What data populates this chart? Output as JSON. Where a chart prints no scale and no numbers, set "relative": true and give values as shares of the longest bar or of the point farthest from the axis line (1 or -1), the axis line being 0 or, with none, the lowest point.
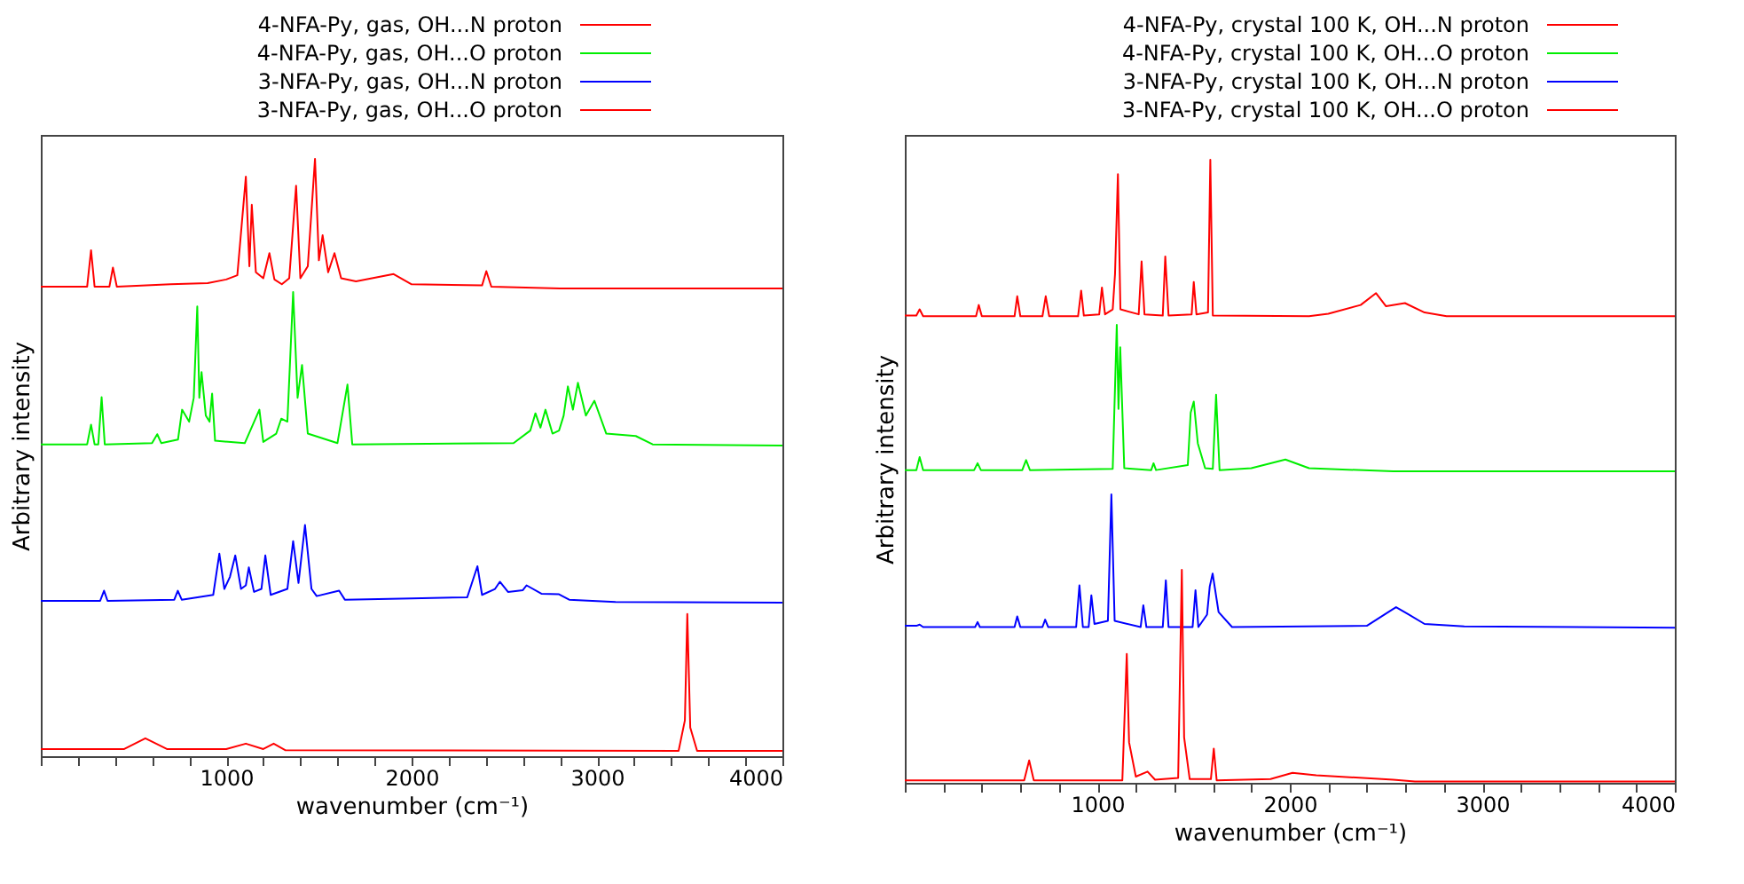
{
  "chart_data": [
    {
      "type": "line",
      "relative": true,
      "xlabel": "wavenumber (cm⁻¹)",
      "ylabel": "Arbitrary intensity",
      "legend": "top",
      "grid": false,
      "line_style": "solid",
      "xlim": [
        0,
        4000
      ],
      "xticks": [
        {
          "value": 0,
          "label": null
        },
        {
          "value": 200,
          "label": null
        },
        {
          "value": 400,
          "label": null
        },
        {
          "value": 600,
          "label": null
        },
        {
          "value": 800,
          "label": null
        },
        1000,
        {
          "value": 1200,
          "label": null
        },
        {
          "value": 1400,
          "label": null
        },
        {
          "value": 1600,
          "label": null
        },
        {
          "value": 1800,
          "label": null
        },
        2000,
        {
          "value": 2200,
          "label": null
        },
        {
          "value": 2400,
          "label": null
        },
        {
          "value": 2600,
          "label": null
        },
        {
          "value": 2800,
          "label": null
        },
        3000,
        {
          "value": 3200,
          "label": null
        },
        {
          "value": 3400,
          "label": null
        },
        {
          "value": 3600,
          "label": null
        },
        {
          "value": 3800,
          "label": null
        },
        4000
      ],
      "series": [
        {
          "name": "4-NFA-Py, gas, OH...N proton",
          "color": "#ff0000",
          "x": [
            0,
            250,
            271,
            290,
            370,
            389,
            410,
            700,
            900,
            1000,
            1060,
            1106,
            1125,
            1138,
            1160,
            1200,
            1233,
            1260,
            1300,
            1340,
            1377,
            1400,
            1440,
            1479,
            1500,
            1520,
            1550,
            1584,
            1620,
            1700,
            1903,
            2000,
            2380,
            2403,
            2430,
            2800,
            4000
          ],
          "values": [
            0.786,
            0.786,
            0.847,
            0.786,
            0.786,
            0.818,
            0.786,
            0.79,
            0.792,
            0.798,
            0.805,
            0.97,
            0.82,
            0.923,
            0.81,
            0.8,
            0.842,
            0.798,
            0.79,
            0.8,
            0.955,
            0.8,
            0.82,
            1.0,
            0.83,
            0.872,
            0.81,
            0.842,
            0.8,
            0.795,
            0.807,
            0.79,
            0.788,
            0.812,
            0.786,
            0.783,
            0.783
          ]
        },
        {
          "name": "4-NFA-Py, gas, OH...O proton",
          "color": "#00ee00",
          "x": [
            0,
            250,
            271,
            290,
            310,
            328,
            345,
            600,
            628,
            650,
            740,
            762,
            800,
            825,
            844,
            855,
            867,
            890,
            910,
            924,
            940,
            1100,
            1179,
            1200,
            1270,
            1297,
            1330,
            1361,
            1385,
            1409,
            1440,
            1600,
            1654,
            1680,
            2550,
            2640,
            2668,
            2695,
            2722,
            2760,
            2795,
            2820,
            2843,
            2870,
            2897,
            2940,
            2986,
            3050,
            3209,
            3300,
            4000
          ],
          "values": [
            0.522,
            0.522,
            0.555,
            0.522,
            0.522,
            0.601,
            0.522,
            0.524,
            0.539,
            0.524,
            0.53,
            0.58,
            0.56,
            0.6,
            0.753,
            0.6,
            0.643,
            0.57,
            0.56,
            0.607,
            0.528,
            0.524,
            0.58,
            0.526,
            0.54,
            0.565,
            0.56,
            0.777,
            0.6,
            0.655,
            0.54,
            0.524,
            0.622,
            0.522,
            0.524,
            0.545,
            0.574,
            0.55,
            0.58,
            0.54,
            0.545,
            0.57,
            0.619,
            0.58,
            0.625,
            0.57,
            0.595,
            0.54,
            0.536,
            0.522,
            0.52
          ]
        },
        {
          "name": "3-NFA-Py, gas, OH...N proton",
          "color": "#0000ff",
          "x": [
            0,
            320,
            341,
            360,
            720,
            739,
            760,
            930,
            963,
            990,
            1020,
            1049,
            1080,
            1106,
            1122,
            1150,
            1190,
            1211,
            1240,
            1330,
            1361,
            1390,
            1425,
            1460,
            1488,
            1609,
            1640,
            2000,
            2300,
            2355,
            2380,
            2450,
            2476,
            2520,
            2600,
            2620,
            2700,
            2795,
            2850,
            3100,
            4000
          ],
          "values": [
            0.26,
            0.26,
            0.277,
            0.26,
            0.262,
            0.277,
            0.262,
            0.27,
            0.339,
            0.28,
            0.3,
            0.336,
            0.28,
            0.286,
            0.316,
            0.275,
            0.28,
            0.336,
            0.27,
            0.28,
            0.36,
            0.29,
            0.387,
            0.28,
            0.268,
            0.277,
            0.262,
            0.264,
            0.266,
            0.318,
            0.27,
            0.28,
            0.292,
            0.275,
            0.278,
            0.286,
            0.272,
            0.271,
            0.262,
            0.258,
            0.257
          ]
        },
        {
          "name": "3-NFA-Py, gas, OH...O proton",
          "color": "#ff0000",
          "x": [
            0,
            450,
            564,
            680,
            1000,
            1106,
            1200,
            1256,
            1320,
            3440,
            3474,
            3487,
            3503,
            3540,
            4000
          ],
          "values": [
            0.012,
            0.012,
            0.03,
            0.012,
            0.012,
            0.021,
            0.012,
            0.021,
            0.01,
            0.009,
            0.06,
            0.238,
            0.048,
            0.009,
            0.009
          ]
        }
      ]
    },
    {
      "type": "line",
      "relative": true,
      "xlabel": "wavenumber (cm⁻¹)",
      "ylabel": "Arbitrary intensity",
      "legend": "top",
      "grid": false,
      "line_style": "solid",
      "xlim": [
        0,
        4000
      ],
      "xticks": [
        {
          "value": 0,
          "label": null
        },
        {
          "value": 200,
          "label": null
        },
        {
          "value": 400,
          "label": null
        },
        {
          "value": 600,
          "label": null
        },
        {
          "value": 800,
          "label": null
        },
        1000,
        {
          "value": 1200,
          "label": null
        },
        {
          "value": 1400,
          "label": null
        },
        {
          "value": 1600,
          "label": null
        },
        {
          "value": 1800,
          "label": null
        },
        2000,
        {
          "value": 2200,
          "label": null
        },
        {
          "value": 2400,
          "label": null
        },
        {
          "value": 2600,
          "label": null
        },
        {
          "value": 2800,
          "label": null
        },
        3000,
        {
          "value": 3200,
          "label": null
        },
        {
          "value": 3400,
          "label": null
        },
        {
          "value": 3600,
          "label": null
        },
        {
          "value": 3800,
          "label": null
        },
        4000
      ],
      "series": [
        {
          "name": "4-NFA-Py, crystal 100 K, OH...N proton",
          "color": "#ff0000",
          "x": [
            0,
            60,
            77,
            95,
            370,
            384,
            400,
            570,
            584,
            600,
            715,
            732,
            750,
            900,
            916,
            930,
            1010,
            1024,
            1040,
            1080,
            1092,
            1107,
            1120,
            1215,
            1230,
            1245,
            1340,
            1353,
            1370,
            1490,
            1501,
            1515,
            1575,
            1587,
            1600,
            2100,
            2200,
            2368,
            2448,
            2500,
            2598,
            2700,
            2814,
            4000
          ],
          "values": [
            0.75,
            0.75,
            0.76,
            0.749,
            0.749,
            0.767,
            0.749,
            0.749,
            0.781,
            0.749,
            0.749,
            0.781,
            0.749,
            0.749,
            0.79,
            0.75,
            0.752,
            0.795,
            0.752,
            0.76,
            0.817,
            0.977,
            0.76,
            0.752,
            0.837,
            0.752,
            0.75,
            0.845,
            0.75,
            0.752,
            0.804,
            0.752,
            0.755,
            1.0,
            0.75,
            0.749,
            0.753,
            0.767,
            0.786,
            0.765,
            0.77,
            0.755,
            0.749,
            0.749
          ]
        },
        {
          "name": "4-NFA-Py, crystal 100 K, OH...O proton",
          "color": "#00ee00",
          "x": [
            0,
            60,
            77,
            95,
            360,
            378,
            395,
            610,
            630,
            650,
            1080,
            1101,
            1110,
            1119,
            1140,
            1280,
            1292,
            1305,
            1470,
            1485,
            1501,
            1522,
            1560,
            1600,
            1617,
            1635,
            1800,
            1977,
            2100,
            2537,
            4000
          ],
          "values": [
            0.502,
            0.502,
            0.523,
            0.502,
            0.502,
            0.513,
            0.502,
            0.502,
            0.518,
            0.502,
            0.504,
            0.735,
            0.6,
            0.699,
            0.505,
            0.502,
            0.513,
            0.502,
            0.51,
            0.594,
            0.612,
            0.545,
            0.505,
            0.504,
            0.623,
            0.502,
            0.505,
            0.519,
            0.505,
            0.5,
            0.5
          ]
        },
        {
          "name": "3-NFA-Py, crystal 100 K, OH...N proton",
          "color": "#0000ff",
          "x": [
            0,
            60,
            77,
            95,
            365,
            378,
            390,
            570,
            584,
            600,
            715,
            729,
            745,
            890,
            907,
            925,
            955,
            969,
            985,
            1055,
            1073,
            1090,
            1225,
            1239,
            1255,
            1340,
            1356,
            1370,
            1495,
            1510,
            1525,
            1570,
            1584,
            1599,
            1630,
            1700,
            2400,
            2537,
            2552,
            2614,
            2700,
            2906,
            4000
          ],
          "values": [
            0.252,
            0.252,
            0.254,
            0.25,
            0.25,
            0.258,
            0.25,
            0.25,
            0.267,
            0.25,
            0.25,
            0.262,
            0.25,
            0.25,
            0.317,
            0.25,
            0.25,
            0.301,
            0.255,
            0.26,
            0.463,
            0.26,
            0.25,
            0.285,
            0.25,
            0.25,
            0.325,
            0.25,
            0.25,
            0.309,
            0.25,
            0.27,
            0.315,
            0.336,
            0.274,
            0.25,
            0.252,
            0.279,
            0.282,
            0.271,
            0.255,
            0.251,
            0.249
          ]
        },
        {
          "name": "3-NFA-Py, crystal 100 K, OH...O proton",
          "color": "#ff0000",
          "x": [
            0,
            620,
            646,
            670,
            1130,
            1153,
            1165,
            1200,
            1261,
            1300,
            1420,
            1439,
            1451,
            1480,
            1590,
            1605,
            1620,
            1900,
            2014,
            2137,
            2537,
            2650,
            4000
          ],
          "values": [
            0.004,
            0.004,
            0.036,
            0.004,
            0.004,
            0.207,
            0.065,
            0.01,
            0.018,
            0.005,
            0.008,
            0.342,
            0.073,
            0.006,
            0.006,
            0.055,
            0.004,
            0.006,
            0.016,
            0.012,
            0.005,
            0.002,
            0.002
          ]
        }
      ]
    }
  ]
}
